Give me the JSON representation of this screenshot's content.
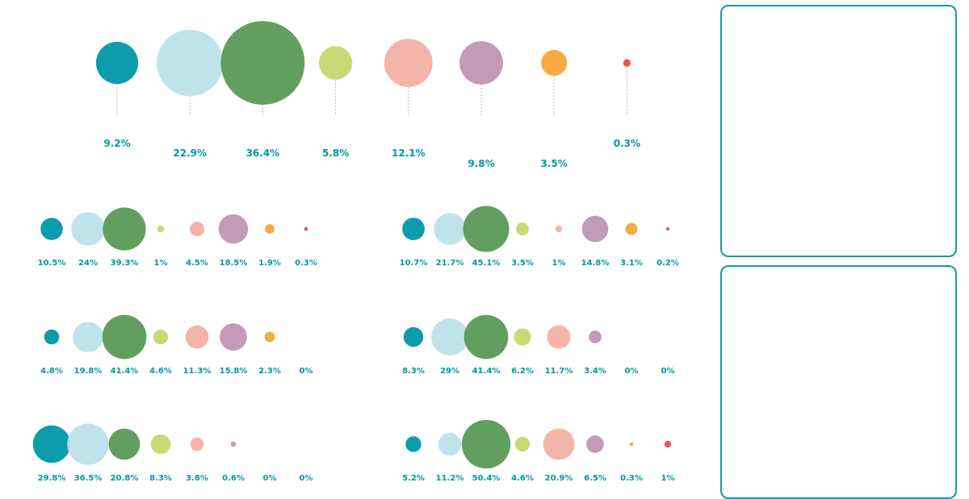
{
  "colors": [
    "#0097a7",
    "#bde1ea",
    "#5a9a55",
    "#c5d86d",
    "#f4b0a4",
    "#c096b4",
    "#f6a73b",
    "#e94e4e"
  ],
  "chart_data": [
    {
      "type": "bubble",
      "name": "main",
      "values": [
        9.2,
        22.9,
        36.4,
        5.8,
        12.1,
        9.8,
        3.5,
        0.3
      ],
      "labels": [
        "9.2%",
        "22.9%",
        "36.4%",
        "5.8%",
        "12.1%",
        "9.8%",
        "3.5%",
        "0.3%"
      ]
    },
    {
      "type": "bubble",
      "name": "small-1",
      "values": [
        10.5,
        24,
        39.3,
        1,
        4.5,
        18.5,
        1.9,
        0.3
      ],
      "labels": [
        "10.5%",
        "24%",
        "39.3%",
        "1%",
        "4.5%",
        "18.5%",
        "1.9%",
        "0.3%"
      ]
    },
    {
      "type": "bubble",
      "name": "small-2",
      "values": [
        10.7,
        21.7,
        45.1,
        3.5,
        1,
        14.8,
        3.1,
        0.2
      ],
      "labels": [
        "10.7%",
        "21.7%",
        "45.1%",
        "3.5%",
        "1%",
        "14.8%",
        "3.1%",
        "0.2%"
      ]
    },
    {
      "type": "bubble",
      "name": "small-3",
      "values": [
        4.8,
        19.8,
        41.4,
        4.6,
        11.3,
        15.8,
        2.3,
        0
      ],
      "labels": [
        "4.8%",
        "19.8%",
        "41.4%",
        "4.6%",
        "11.3%",
        "15.8%",
        "2.3%",
        "0%"
      ]
    },
    {
      "type": "bubble",
      "name": "small-4",
      "values": [
        8.3,
        29,
        41.4,
        6.2,
        11.7,
        3.4,
        0,
        0
      ],
      "labels": [
        "8.3%",
        "29%",
        "41.4%",
        "6.2%",
        "11.7%",
        "3.4%",
        "0%",
        "0%"
      ]
    },
    {
      "type": "bubble",
      "name": "small-5",
      "values": [
        29.8,
        36.5,
        20.8,
        8.3,
        3.8,
        0.6,
        0,
        0
      ],
      "labels": [
        "29.8%",
        "36.5%",
        "20.8%",
        "8.3%",
        "3.8%",
        "0.6%",
        "0%",
        "0%"
      ]
    },
    {
      "type": "bubble",
      "name": "small-6",
      "values": [
        5.2,
        11.2,
        50.4,
        4.6,
        20.9,
        6.5,
        0.3,
        1
      ],
      "labels": [
        "5.2%",
        "11.2%",
        "50.4%",
        "4.6%",
        "20.9%",
        "6.5%",
        "0.3%",
        "1%"
      ]
    }
  ]
}
